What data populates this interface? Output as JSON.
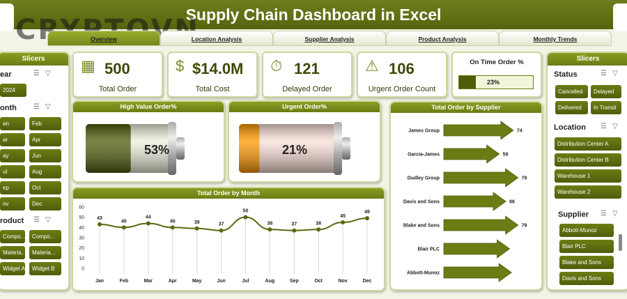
{
  "header": {
    "title": "Supply Chain Dashboard in Excel",
    "watermark": "CRYPTOVN"
  },
  "tabs": [
    {
      "label": "Overview",
      "active": true
    },
    {
      "label": "Location Analysis",
      "active": false
    },
    {
      "label": "Supplier Analysis",
      "active": false
    },
    {
      "label": "Product Analysis",
      "active": false
    },
    {
      "label": "Monthly Trends",
      "active": false
    }
  ],
  "left_slicers": {
    "title": "Slicers",
    "year": {
      "label": "ear",
      "items": [
        "2024"
      ]
    },
    "month": {
      "label": "onth",
      "items": [
        "an",
        "Feb",
        "ar",
        "Apr",
        "ay",
        "Jun",
        "ul",
        "Aug",
        "ep",
        "Oct",
        "ov",
        "Dec"
      ]
    },
    "product": {
      "label": "roduct",
      "items": [
        "Compo...",
        "Compo...",
        "Materia...",
        "Materia...",
        "Widget A",
        "Widget B"
      ]
    }
  },
  "kpis": {
    "total_order": {
      "value": "500",
      "label": "Total Order",
      "icon": "boxes-icon"
    },
    "total_cost": {
      "value": "$14.0M",
      "label": "Total Cost",
      "icon": "money-icon"
    },
    "delayed_order": {
      "value": "121",
      "label": "Delayed Order",
      "icon": "clock-truck-icon"
    },
    "urgent_order": {
      "value": "106",
      "label": "Urgent Order Count",
      "icon": "urgent-truck-icon"
    },
    "on_time": {
      "label": "On Time Order %",
      "value": "23%",
      "fraction": 0.23
    }
  },
  "high_value": {
    "title": "High Value Order%",
    "value": "53%",
    "fraction": 0.53,
    "color": "#4d5d0a"
  },
  "urgent_pct": {
    "title": "Urgent Order%",
    "value": "21%",
    "fraction": 0.21,
    "color": "#ff9800"
  },
  "month_chart": {
    "title": "Total Order by Month"
  },
  "chart_data": [
    {
      "type": "line",
      "title": "Total Order by Month",
      "categories": [
        "Jan",
        "Feb",
        "Mar",
        "Apr",
        "May",
        "Jun",
        "Jul",
        "Aug",
        "Sep",
        "Oct",
        "Nov",
        "Dec"
      ],
      "values": [
        43,
        40,
        44,
        40,
        39,
        37,
        50,
        38,
        37,
        38,
        45,
        49
      ],
      "ylim": [
        0,
        60
      ],
      "yticks": [
        0,
        10,
        20,
        30,
        40,
        50,
        60
      ],
      "grid": false
    },
    {
      "type": "bar",
      "title": "Total Order by Supplier",
      "categories": [
        "James Group",
        "Garcia-James",
        "Dudley Group",
        "Davis and Sons",
        "Blake and Sons",
        "Blair PLC",
        "Abbott-Munoz"
      ],
      "values": [
        74,
        59,
        79,
        66,
        79,
        70,
        72
      ],
      "labels": [
        "74",
        "59",
        "79",
        "66",
        "79",
        "",
        ""
      ],
      "grid": false
    }
  ],
  "right_slicers": {
    "title": "Slicers",
    "status": {
      "label": "Status",
      "items": [
        "Cancelled",
        "Delayed",
        "Delivered",
        "In Transit"
      ]
    },
    "location": {
      "label": "Location",
      "items": [
        "Distribution Center A",
        "Distribution Center B",
        "Warehouse 1",
        "Warehouse 2"
      ]
    },
    "supplier": {
      "label": "Supplier",
      "items": [
        "Abbott-Munoz",
        "Blair PLC",
        "Blake and Sons",
        "Davis and Sons"
      ]
    }
  },
  "colors": {
    "accent": "#6b7c14",
    "dark": "#4f5e0b"
  }
}
